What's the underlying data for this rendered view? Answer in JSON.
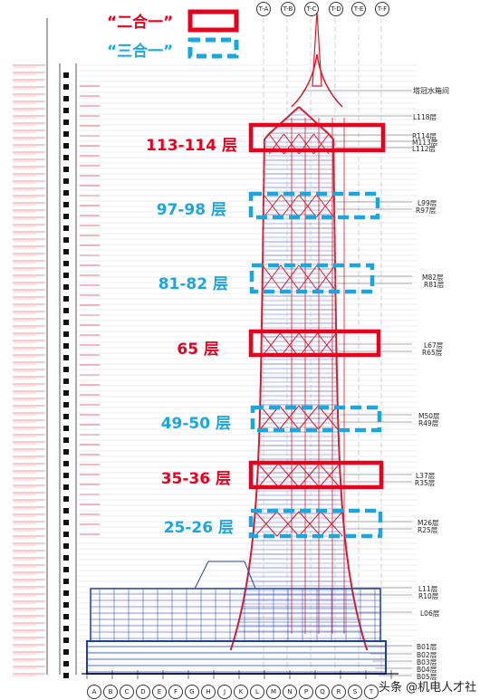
{
  "legend": {
    "red_label": "“二合一”",
    "blue_label": "“三合一”"
  },
  "annotations": [
    {
      "label": "113-114 层",
      "kind": "red"
    },
    {
      "label": "97-98 层",
      "kind": "blue"
    },
    {
      "label": "81-82 层",
      "kind": "blue"
    },
    {
      "label": "65 层",
      "kind": "red"
    },
    {
      "label": "49-50 层",
      "kind": "blue"
    },
    {
      "label": "35-36 层",
      "kind": "red"
    },
    {
      "label": "25-26 层",
      "kind": "blue"
    }
  ],
  "right_labels": [
    "塔冠水箱间",
    "L118层",
    "R114层",
    "M113层",
    "L112层",
    "L99层",
    "R97层",
    "M82层",
    "R81层",
    "L67层",
    "R65层",
    "M50层",
    "R49层",
    "L37层",
    "R35层",
    "M26层",
    "R25层",
    "L11层",
    "R10层",
    "L06层",
    "B01层",
    "B02层",
    "B03层",
    "B04层",
    "B05层"
  ],
  "axis_top": [
    "T-A",
    "T-B",
    "T-C",
    "T-D",
    "T-E",
    "T-F"
  ],
  "axis_bottom": [
    "A",
    "B",
    "C",
    "D",
    "E",
    "F",
    "G",
    "H",
    "J",
    "K",
    "L",
    "M",
    "N",
    "P",
    "Q",
    "R",
    "S",
    "T"
  ],
  "watermark": "头条 @机电人才社",
  "colors": {
    "red": "#e8001c",
    "blue": "#1aa7e0",
    "structure_blue": "#1f3fa8",
    "structure_red": "#d81b2a"
  }
}
